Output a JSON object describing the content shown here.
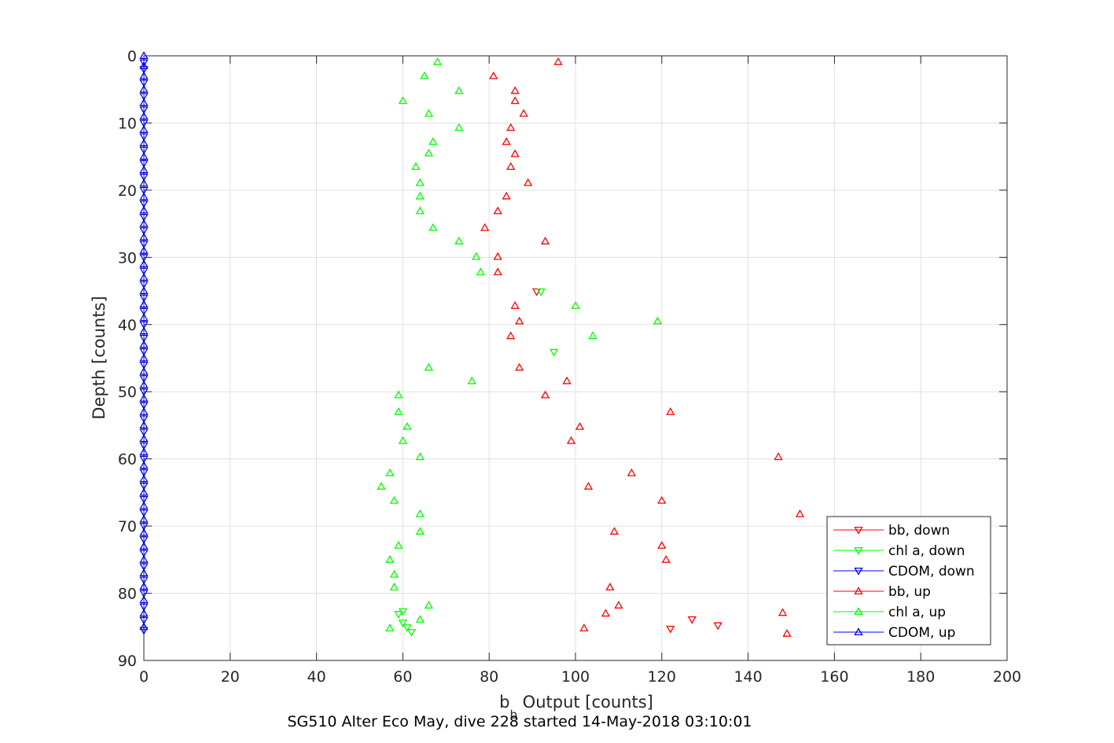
{
  "chart_data": {
    "type": "scatter",
    "title": "SG510 Alter Eco May, dive 228 started 14-May-2018 03:10:01",
    "xlabel": {
      "base": "b",
      "sub": "b",
      "rest": " Output [counts]"
    },
    "ylabel": "Depth [counts]",
    "xlim": [
      0,
      200
    ],
    "ylim": [
      0,
      90
    ],
    "y_reversed": true,
    "grid": true,
    "legend_position": "bottom-right",
    "xticks": [
      "0",
      "20",
      "40",
      "60",
      "80",
      "100",
      "120",
      "140",
      "160",
      "180",
      "200"
    ],
    "yticks": [
      "0",
      "10",
      "20",
      "30",
      "40",
      "50",
      "60",
      "70",
      "80",
      "90"
    ],
    "series": [
      {
        "name": "bb, down",
        "color": "#ff0000",
        "marker": "triangle-down",
        "points": [
          [
            91,
            35.1
          ],
          [
            127,
            83.9
          ],
          [
            133,
            84.8
          ],
          [
            122,
            85.3
          ]
        ]
      },
      {
        "name": "chl a, down",
        "color": "#00ff00",
        "marker": "triangle-down",
        "points": [
          [
            92,
            35.1
          ],
          [
            95,
            44.1
          ],
          [
            60,
            82.7
          ],
          [
            59,
            83.1
          ],
          [
            60,
            84.4
          ],
          [
            61,
            85.1
          ],
          [
            62,
            85.8
          ]
        ]
      },
      {
        "name": "CDOM, down",
        "color": "#0000ff",
        "marker": "triangle-down",
        "points": [
          [
            0,
            1
          ],
          [
            0,
            2
          ],
          [
            0,
            4
          ],
          [
            0,
            6
          ],
          [
            0,
            8
          ],
          [
            0,
            10
          ],
          [
            0,
            12
          ],
          [
            0,
            14
          ],
          [
            0,
            16
          ],
          [
            0,
            18
          ],
          [
            0,
            20
          ],
          [
            0,
            22
          ],
          [
            0,
            24
          ],
          [
            0,
            26
          ],
          [
            0,
            28
          ],
          [
            0,
            30
          ],
          [
            0,
            32
          ],
          [
            0,
            34
          ],
          [
            0,
            36
          ],
          [
            0,
            38
          ],
          [
            0,
            40
          ],
          [
            0,
            42
          ],
          [
            0,
            44
          ],
          [
            0,
            46
          ],
          [
            0,
            48
          ],
          [
            0,
            50
          ],
          [
            0,
            52
          ],
          [
            0,
            54
          ],
          [
            0,
            56
          ],
          [
            0,
            58
          ],
          [
            0,
            60
          ],
          [
            0,
            62
          ],
          [
            0,
            64
          ],
          [
            0,
            66
          ],
          [
            0,
            68
          ],
          [
            0,
            70
          ],
          [
            0,
            72
          ],
          [
            0,
            74
          ],
          [
            0,
            76
          ],
          [
            0,
            78
          ],
          [
            0,
            80
          ],
          [
            0,
            82
          ],
          [
            0,
            84
          ],
          [
            0,
            85.5
          ]
        ]
      },
      {
        "name": "bb, up",
        "color": "#ff0000",
        "marker": "triangle-up",
        "points": [
          [
            96,
            0.9
          ],
          [
            81,
            3
          ],
          [
            86,
            5.2
          ],
          [
            86,
            6.7
          ],
          [
            88,
            8.6
          ],
          [
            85,
            10.7
          ],
          [
            84,
            12.8
          ],
          [
            86,
            14.6
          ],
          [
            85,
            16.5
          ],
          [
            89,
            18.9
          ],
          [
            84,
            20.9
          ],
          [
            82,
            23.1
          ],
          [
            79,
            25.6
          ],
          [
            93,
            27.6
          ],
          [
            82,
            29.9
          ],
          [
            82,
            32.2
          ],
          [
            86,
            37.2
          ],
          [
            87,
            39.5
          ],
          [
            85,
            41.7
          ],
          [
            87,
            46.4
          ],
          [
            98,
            48.4
          ],
          [
            93,
            50.5
          ],
          [
            122,
            53
          ],
          [
            101,
            55.2
          ],
          [
            99,
            57.3
          ],
          [
            147,
            59.7
          ],
          [
            113,
            62.1
          ],
          [
            103,
            64.1
          ],
          [
            120,
            66.2
          ],
          [
            152,
            68.2
          ],
          [
            109,
            70.8
          ],
          [
            120,
            72.9
          ],
          [
            121,
            75
          ],
          [
            108,
            79.1
          ],
          [
            110,
            81.8
          ],
          [
            107,
            83
          ],
          [
            148,
            82.9
          ],
          [
            102,
            85.2
          ],
          [
            149,
            86
          ]
        ]
      },
      {
        "name": "chl a, up",
        "color": "#00ff00",
        "marker": "triangle-up",
        "points": [
          [
            68,
            0.9
          ],
          [
            65,
            3
          ],
          [
            73,
            5.2
          ],
          [
            60,
            6.7
          ],
          [
            66,
            8.6
          ],
          [
            73,
            10.7
          ],
          [
            67,
            12.8
          ],
          [
            66,
            14.5
          ],
          [
            63,
            16.5
          ],
          [
            64,
            18.9
          ],
          [
            64,
            20.9
          ],
          [
            64,
            23.1
          ],
          [
            67,
            25.6
          ],
          [
            73,
            27.6
          ],
          [
            77,
            29.9
          ],
          [
            78,
            32.2
          ],
          [
            100,
            37.2
          ],
          [
            119,
            39.5
          ],
          [
            104,
            41.7
          ],
          [
            66,
            46.4
          ],
          [
            76,
            48.4
          ],
          [
            59,
            50.5
          ],
          [
            59,
            53
          ],
          [
            61,
            55.2
          ],
          [
            60,
            57.3
          ],
          [
            64,
            59.7
          ],
          [
            57,
            62.1
          ],
          [
            55,
            64.1
          ],
          [
            58,
            66.2
          ],
          [
            64,
            68.2
          ],
          [
            64,
            70.8
          ],
          [
            59,
            72.9
          ],
          [
            57,
            75
          ],
          [
            58,
            77.2
          ],
          [
            58,
            79.1
          ],
          [
            66,
            81.8
          ],
          [
            64,
            83.9
          ],
          [
            57,
            85.2
          ]
        ]
      },
      {
        "name": "CDOM, up",
        "color": "#0000ff",
        "marker": "triangle-up",
        "points": [
          [
            0,
            0
          ],
          [
            0,
            1.5
          ],
          [
            0,
            3
          ],
          [
            0,
            5
          ],
          [
            0,
            7
          ],
          [
            0,
            9
          ],
          [
            0,
            11
          ],
          [
            0,
            13
          ],
          [
            0,
            15
          ],
          [
            0,
            17
          ],
          [
            0,
            19
          ],
          [
            0,
            21
          ],
          [
            0,
            23
          ],
          [
            0,
            25
          ],
          [
            0,
            27
          ],
          [
            0,
            29
          ],
          [
            0,
            31
          ],
          [
            0,
            33
          ],
          [
            0,
            35
          ],
          [
            0,
            37
          ],
          [
            0,
            39
          ],
          [
            0,
            41
          ],
          [
            0,
            43
          ],
          [
            0,
            45
          ],
          [
            0,
            47
          ],
          [
            0,
            49
          ],
          [
            0,
            51
          ],
          [
            0,
            53
          ],
          [
            0,
            55
          ],
          [
            0,
            57
          ],
          [
            0,
            59
          ],
          [
            0,
            61
          ],
          [
            0,
            63
          ],
          [
            0,
            65
          ],
          [
            0,
            67
          ],
          [
            0,
            69
          ],
          [
            0,
            71
          ],
          [
            0,
            73
          ],
          [
            0,
            75
          ],
          [
            0,
            77
          ],
          [
            0,
            79
          ],
          [
            0,
            81
          ],
          [
            0,
            83
          ],
          [
            0,
            85
          ]
        ]
      }
    ]
  }
}
